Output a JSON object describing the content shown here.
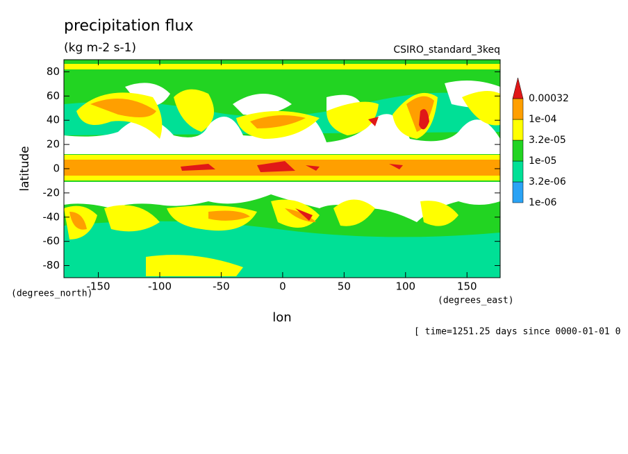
{
  "chart_data": {
    "type": "contour",
    "title": "precipitation flux",
    "subtitle": "(kg m-2 s-1)",
    "dataset": "CSIRO_standard_3keq",
    "xlabel": "lon",
    "ylabel": "latitude",
    "xunits": "(degrees_east)",
    "yunits": "(degrees_north)",
    "footer": "[ time=1251.25 days since 0000-01-01 0",
    "xlim": [
      -178,
      177
    ],
    "ylim": [
      -90,
      90
    ],
    "xticks": [
      -150,
      -100,
      -50,
      0,
      50,
      100,
      150
    ],
    "yticks": [
      80,
      60,
      40,
      20,
      0,
      -20,
      -40,
      -60,
      -80
    ],
    "colorbar": {
      "levels": [
        {
          "value": 1e-06,
          "label": "1e-06"
        },
        {
          "value": 3.2e-06,
          "label": "3.2e-06"
        },
        {
          "value": 1e-05,
          "label": "1e-05"
        },
        {
          "value": 3.2e-05,
          "label": "3.2e-05"
        },
        {
          "value": 0.0001,
          "label": "1e-04"
        },
        0.00032
      ],
      "colors": [
        "#2aa3f5",
        "#00e096",
        "#22d422",
        "#ffff00",
        "#ff9f00"
      ],
      "over_color": "#e01818"
    }
  }
}
